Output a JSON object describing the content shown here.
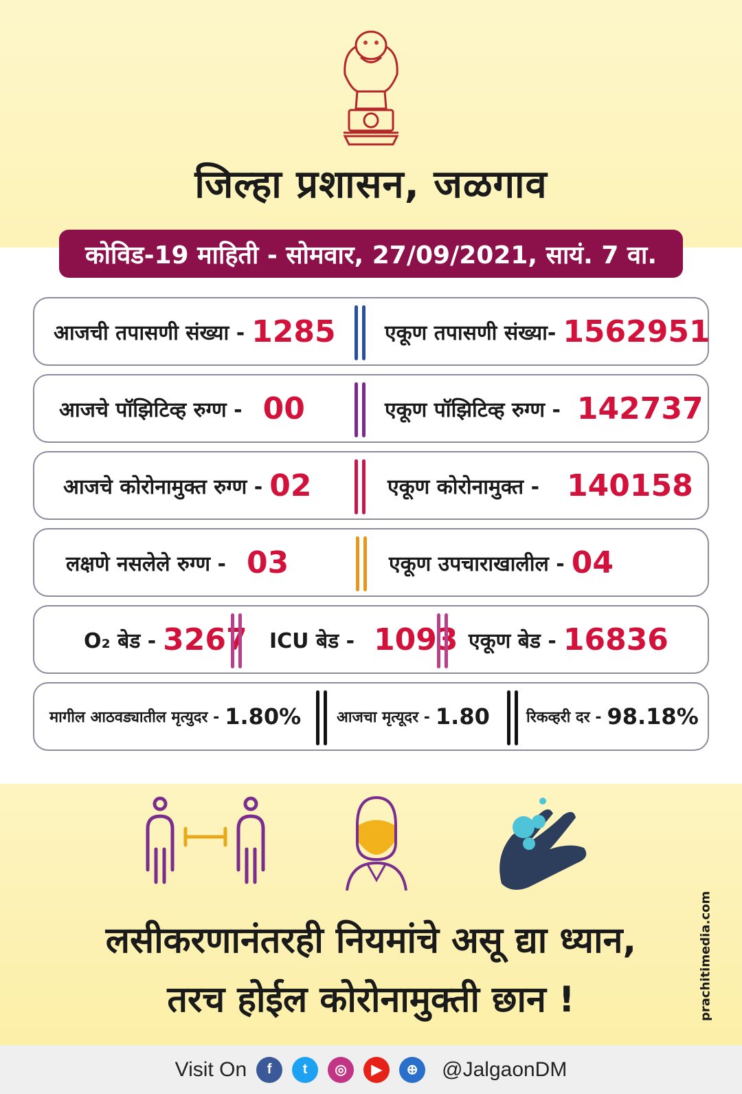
{
  "header": {
    "emblem_icon": "state-emblem-icon",
    "title": "जिल्हा प्रशासन, जळगाव",
    "date_banner": "कोविड-19 माहिती - सोमवार, 27/09/2021, सायं. 7 वा."
  },
  "stats": {
    "row1": {
      "left_label": "आजची तपासणी संख्या -",
      "left_value": "1285",
      "right_label": "एकूण तपासणी संख्या-",
      "right_value": "1562951",
      "separator_color": "#2a4f9c"
    },
    "row2": {
      "left_label": "आजचे पॉझिटिव्ह रुग्ण -",
      "left_value": "00",
      "right_label": "एकूण पॉझिटिव्ह रुग्ण -",
      "right_value": "142737",
      "separator_color": "#7a2a8e"
    },
    "row3": {
      "left_label": "आजचे कोरोनामुक्त रुग्ण -",
      "left_value": "02",
      "right_label": "एकूण कोरोनामुक्त -",
      "right_value": "140158",
      "separator_color": "#c8174a"
    },
    "row4": {
      "left_label": "लक्षणे नसलेले रुग्ण -",
      "left_value": "03",
      "right_label": "एकूण उपचाराखालील -",
      "right_value": "04",
      "separator_color": "#e8961c"
    },
    "row5": {
      "o2_label": "O₂ बेड -",
      "o2_value": "3267",
      "icu_label": "ICU बेड -",
      "icu_value": "1093",
      "total_label": "एकूण बेड -",
      "total_value": "16836",
      "separator_color": "#b8408a"
    },
    "row6": {
      "weekly_label": "मागील आठवड्यातील मृत्युदर -",
      "weekly_value": "1.80%",
      "today_label": "आजचा मृत्यूदर -",
      "today_value": "1.80",
      "recovery_label": "रिकव्हरी दर -",
      "recovery_value": "98.18%",
      "separator_color": "#111111"
    }
  },
  "icons": {
    "distance": "social-distancing-icon",
    "mask": "face-mask-icon",
    "handwash": "hand-wash-icon"
  },
  "slogan": {
    "line1": "लसीकरणानंतरही  नियमांचे असू द्या ध्यान,",
    "line2": "तरच होईल कोरोनामुक्ती छान !"
  },
  "credit": "prachitimedia.com",
  "footer": {
    "visit_label": "Visit On",
    "handle": "@JalgaonDM",
    "social": [
      {
        "name": "facebook-icon",
        "glyph": "f",
        "color": "#3b5998"
      },
      {
        "name": "twitter-icon",
        "glyph": "t",
        "color": "#1da1f2"
      },
      {
        "name": "instagram-icon",
        "glyph": "◎",
        "color": "#c13584"
      },
      {
        "name": "youtube-icon",
        "glyph": "▶",
        "color": "#e62117"
      },
      {
        "name": "web-icon",
        "glyph": "⊕",
        "color": "#2a6fc9"
      }
    ]
  }
}
